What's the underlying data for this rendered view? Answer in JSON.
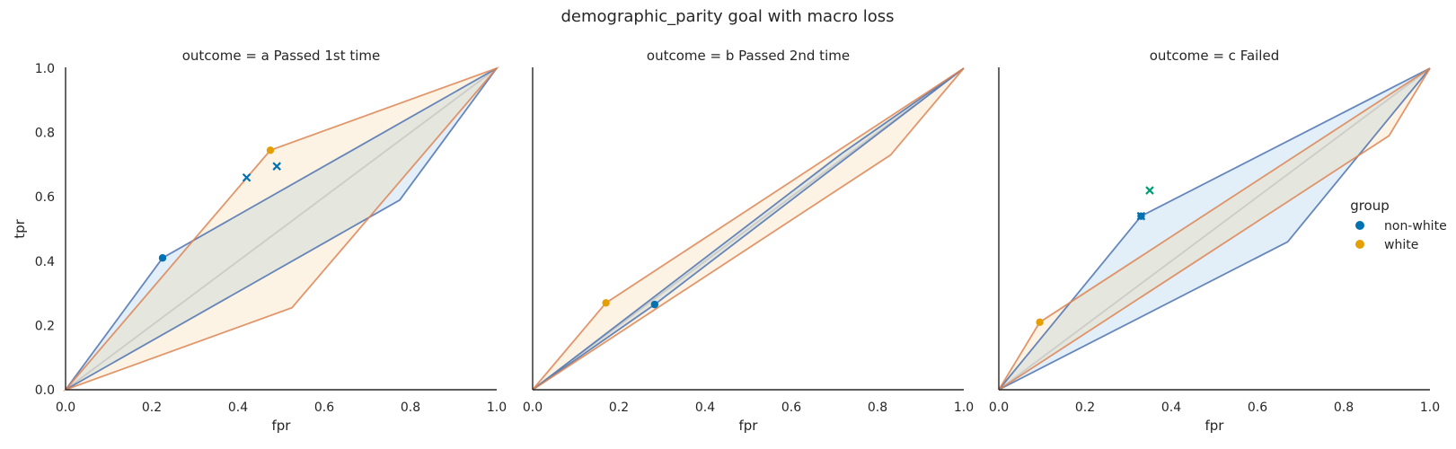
{
  "figure": {
    "suptitle": "demographic_parity goal with macro loss"
  },
  "legend": {
    "title": "group",
    "entries": [
      {
        "label": "non-white",
        "color": "#0072B2"
      },
      {
        "label": "white",
        "color": "#E69F00"
      }
    ],
    "placement": "right"
  },
  "colors": {
    "non_white_line": "#4C72B0",
    "non_white_fill": "#4C9BD6",
    "white_line": "#DD8452",
    "white_fill": "#F3C37A",
    "diagonal": "#BBBBBB",
    "cross_nonwhite": "#0072B2",
    "cross_alt": "#009E73",
    "marker_nonwhite": "#0072B2",
    "marker_white": "#E69F00"
  },
  "chart_data": [
    {
      "type": "line",
      "title": "outcome = a Passed 1st time",
      "xlabel": "fpr",
      "ylabel": "tpr",
      "xlim": [
        0,
        1
      ],
      "ylim": [
        0,
        1
      ],
      "xticks": [
        "0.0",
        "0.2",
        "0.4",
        "0.6",
        "0.8",
        "1.0"
      ],
      "yticks": [
        "0.0",
        "0.2",
        "0.4",
        "0.6",
        "0.8",
        "1.0"
      ],
      "hulls": [
        {
          "group": "non-white",
          "points": [
            [
              0,
              0
            ],
            [
              0.225,
              0.41
            ],
            [
              1,
              1
            ],
            [
              0.775,
              0.59
            ]
          ]
        },
        {
          "group": "white",
          "points": [
            [
              0,
              0
            ],
            [
              0.475,
              0.745
            ],
            [
              1,
              1
            ],
            [
              0.525,
              0.255
            ]
          ]
        }
      ],
      "points": [
        {
          "group": "non-white",
          "x": 0.225,
          "y": 0.41
        },
        {
          "group": "white",
          "x": 0.475,
          "y": 0.745
        }
      ],
      "crosses": [
        {
          "color_key": "cross_nonwhite",
          "x": 0.42,
          "y": 0.66
        },
        {
          "color_key": "cross_nonwhite",
          "x": 0.49,
          "y": 0.695
        }
      ]
    },
    {
      "type": "line",
      "title": "outcome = b Passed 2nd time",
      "xlabel": "fpr",
      "ylabel": "",
      "xlim": [
        0,
        1
      ],
      "ylim": [
        0,
        1
      ],
      "xticks": [
        "0.0",
        "0.2",
        "0.4",
        "0.6",
        "0.8",
        "1.0"
      ],
      "yticks": [],
      "hulls": [
        {
          "group": "non-white",
          "points": [
            [
              0,
              0
            ],
            [
              0.283,
              0.265
            ],
            [
              1,
              1
            ],
            [
              0.717,
              0.735
            ]
          ]
        },
        {
          "group": "white",
          "points": [
            [
              0,
              0
            ],
            [
              0.17,
              0.27
            ],
            [
              1,
              1
            ],
            [
              0.83,
              0.73
            ]
          ]
        }
      ],
      "points": [
        {
          "group": "non-white",
          "x": 0.283,
          "y": 0.265
        },
        {
          "group": "white",
          "x": 0.17,
          "y": 0.27
        }
      ],
      "crosses": []
    },
    {
      "type": "line",
      "title": "outcome = c Failed",
      "xlabel": "fpr",
      "ylabel": "",
      "xlim": [
        0,
        1
      ],
      "ylim": [
        0,
        1
      ],
      "xticks": [
        "0.0",
        "0.2",
        "0.4",
        "0.6",
        "0.8",
        "1.0"
      ],
      "yticks": [],
      "hulls": [
        {
          "group": "non-white",
          "points": [
            [
              0,
              0
            ],
            [
              0.33,
              0.54
            ],
            [
              1,
              1
            ],
            [
              0.67,
              0.46
            ]
          ]
        },
        {
          "group": "white",
          "points": [
            [
              0,
              0
            ],
            [
              0.095,
              0.21
            ],
            [
              1,
              1
            ],
            [
              0.905,
              0.79
            ]
          ]
        }
      ],
      "points": [
        {
          "group": "non-white",
          "x": 0.33,
          "y": 0.54
        }
      ],
      "crosses": [
        {
          "color_key": "cross_nonwhite",
          "x": 0.33,
          "y": 0.54
        },
        {
          "color_key": "cross_alt",
          "x": 0.35,
          "y": 0.62
        }
      ],
      "extra_points": [
        {
          "group": "white",
          "x": 0.095,
          "y": 0.21
        }
      ]
    }
  ]
}
